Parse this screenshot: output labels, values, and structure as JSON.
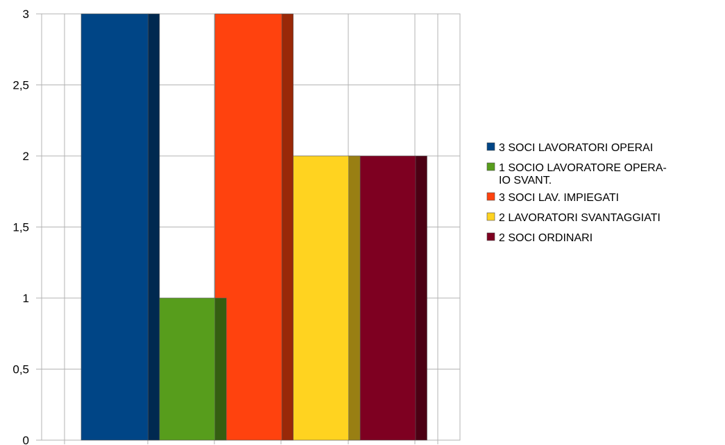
{
  "chart_data": {
    "type": "bar",
    "style": "3d",
    "categories": [
      ""
    ],
    "series": [
      {
        "name": "3 SOCI LAVORATORI OPERAI",
        "value": 3,
        "color": "#004586"
      },
      {
        "name": "1 SOCIO LAVORATORE OPERA-IO SVANT.",
        "value": 1,
        "color": "#579d1c"
      },
      {
        "name": "3 SOCI LAV. IMPIEGATI",
        "value": 3,
        "color": "#ff420e"
      },
      {
        "name": "2 LAVORATORI SVANTAGGIATI",
        "value": 2,
        "color": "#ffd320"
      },
      {
        "name": "2 SOCI ORDINARI",
        "value": 2,
        "color": "#7e0021"
      }
    ],
    "ylim": [
      0,
      3
    ],
    "yticks": [
      "0",
      "0,5",
      "1",
      "1,5",
      "2",
      "2,5",
      "3"
    ],
    "grid": true,
    "legend_position": "right",
    "legend_lines": [
      [
        "3 SOCI LAVORATORI OPERAI"
      ],
      [
        "1 SOCIO LAVORATORE  OPERA-",
        "IO SVANT."
      ],
      [
        "3 SOCI LAV. IMPIEGATI"
      ],
      [
        "2 LAVORATORI SVANTAGGIATI"
      ],
      [
        "2 SOCI ORDINARI"
      ]
    ]
  }
}
